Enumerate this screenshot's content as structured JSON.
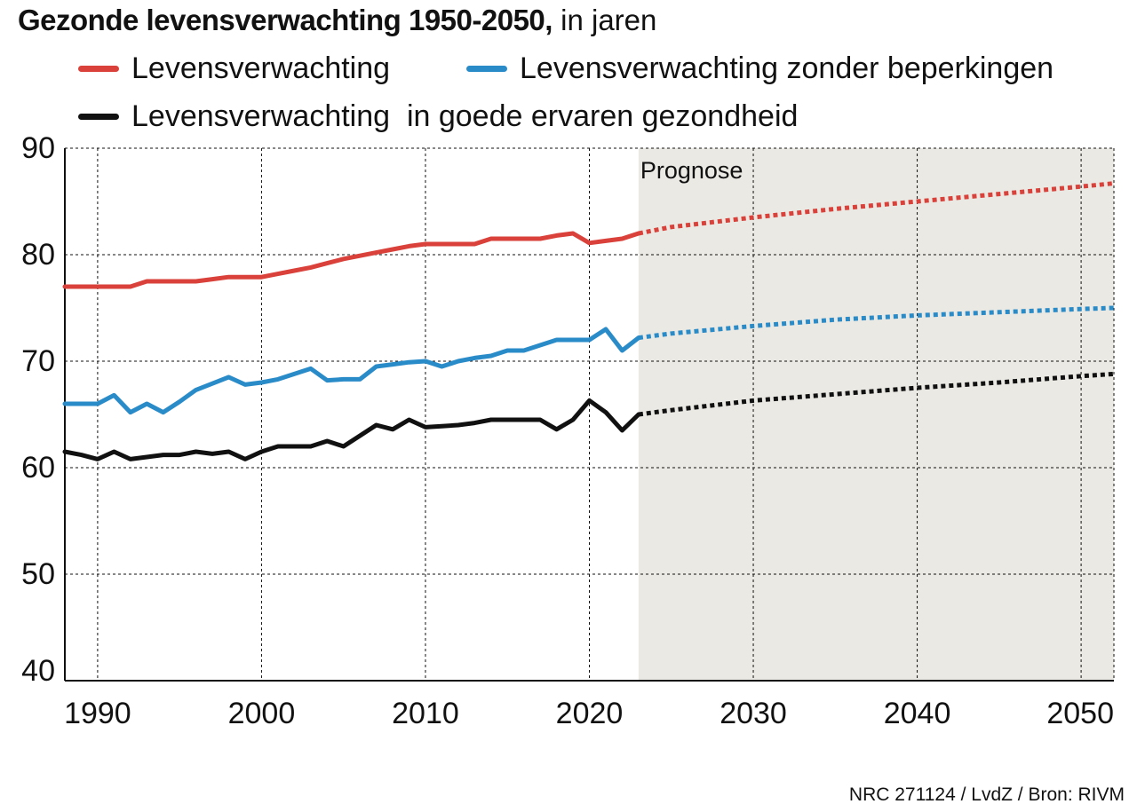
{
  "title": {
    "main": "Gezonde levensverwachting 1950-2050,",
    "sub": "in jaren"
  },
  "source_note": "NRC 271124 / LvdZ / Bron: RIVM",
  "chart_data": {
    "type": "line",
    "title": "Gezonde levensverwachting 1950-2050, in jaren",
    "xlabel": "",
    "ylabel": "",
    "xlim": [
      1988,
      2052
    ],
    "ylim": [
      40,
      90
    ],
    "x_ticks": [
      1990,
      2000,
      2010,
      2020,
      2030,
      2040,
      2050
    ],
    "y_ticks": [
      40,
      50,
      60,
      70,
      80,
      90
    ],
    "grid": true,
    "legend_position": "top",
    "forecast": {
      "label": "Prognose",
      "start": 2023,
      "end": 2052,
      "color": "#ebe9e3"
    },
    "series": [
      {
        "name": "Levensverwachting",
        "color": "#d9413a",
        "observed": [
          [
            1988,
            77.0
          ],
          [
            1989,
            77.0
          ],
          [
            1990,
            77.0
          ],
          [
            1991,
            77.0
          ],
          [
            1992,
            77.0
          ],
          [
            1993,
            77.5
          ],
          [
            1994,
            77.5
          ],
          [
            1995,
            77.5
          ],
          [
            1996,
            77.5
          ],
          [
            1997,
            77.7
          ],
          [
            1998,
            77.9
          ],
          [
            1999,
            77.9
          ],
          [
            2000,
            77.9
          ],
          [
            2001,
            78.2
          ],
          [
            2002,
            78.5
          ],
          [
            2003,
            78.8
          ],
          [
            2004,
            79.2
          ],
          [
            2005,
            79.6
          ],
          [
            2006,
            79.9
          ],
          [
            2007,
            80.2
          ],
          [
            2008,
            80.5
          ],
          [
            2009,
            80.8
          ],
          [
            2010,
            81.0
          ],
          [
            2011,
            81.0
          ],
          [
            2012,
            81.0
          ],
          [
            2013,
            81.0
          ],
          [
            2014,
            81.5
          ],
          [
            2015,
            81.5
          ],
          [
            2016,
            81.5
          ],
          [
            2017,
            81.5
          ],
          [
            2018,
            81.8
          ],
          [
            2019,
            82.0
          ],
          [
            2020,
            81.1
          ],
          [
            2021,
            81.3
          ],
          [
            2022,
            81.5
          ],
          [
            2023,
            82.0
          ]
        ],
        "forecast": [
          [
            2023,
            82.0
          ],
          [
            2025,
            82.6
          ],
          [
            2030,
            83.5
          ],
          [
            2035,
            84.3
          ],
          [
            2040,
            85.0
          ],
          [
            2045,
            85.7
          ],
          [
            2050,
            86.4
          ],
          [
            2052,
            86.7
          ]
        ]
      },
      {
        "name": "Levensverwachting zonder beperkingen",
        "color": "#2a8bc9",
        "observed": [
          [
            1988,
            66.0
          ],
          [
            1989,
            66.0
          ],
          [
            1990,
            66.0
          ],
          [
            1991,
            66.8
          ],
          [
            1992,
            65.2
          ],
          [
            1993,
            66.0
          ],
          [
            1994,
            65.2
          ],
          [
            1995,
            66.2
          ],
          [
            1996,
            67.3
          ],
          [
            1997,
            67.9
          ],
          [
            1998,
            68.5
          ],
          [
            1999,
            67.8
          ],
          [
            2000,
            68.0
          ],
          [
            2001,
            68.3
          ],
          [
            2002,
            68.8
          ],
          [
            2003,
            69.3
          ],
          [
            2004,
            68.2
          ],
          [
            2005,
            68.3
          ],
          [
            2006,
            68.3
          ],
          [
            2007,
            69.5
          ],
          [
            2008,
            69.7
          ],
          [
            2009,
            69.9
          ],
          [
            2010,
            70.0
          ],
          [
            2011,
            69.5
          ],
          [
            2012,
            70.0
          ],
          [
            2013,
            70.3
          ],
          [
            2014,
            70.5
          ],
          [
            2015,
            71.0
          ],
          [
            2016,
            71.0
          ],
          [
            2017,
            71.5
          ],
          [
            2018,
            72.0
          ],
          [
            2019,
            72.0
          ],
          [
            2020,
            72.0
          ],
          [
            2021,
            73.0
          ],
          [
            2022,
            71.0
          ],
          [
            2023,
            72.2
          ]
        ],
        "forecast": [
          [
            2023,
            72.2
          ],
          [
            2025,
            72.6
          ],
          [
            2030,
            73.3
          ],
          [
            2035,
            73.9
          ],
          [
            2040,
            74.3
          ],
          [
            2045,
            74.6
          ],
          [
            2050,
            74.9
          ],
          [
            2052,
            75.0
          ]
        ]
      },
      {
        "name": "Levensverwachting  in goede ervaren gezondheid",
        "color": "#111111",
        "observed": [
          [
            1988,
            61.5
          ],
          [
            1989,
            61.2
          ],
          [
            1990,
            60.8
          ],
          [
            1991,
            61.5
          ],
          [
            1992,
            60.8
          ],
          [
            1993,
            61.0
          ],
          [
            1994,
            61.2
          ],
          [
            1995,
            61.2
          ],
          [
            1996,
            61.5
          ],
          [
            1997,
            61.3
          ],
          [
            1998,
            61.5
          ],
          [
            1999,
            60.8
          ],
          [
            2000,
            61.5
          ],
          [
            2001,
            62.0
          ],
          [
            2002,
            62.0
          ],
          [
            2003,
            62.0
          ],
          [
            2004,
            62.5
          ],
          [
            2005,
            62.0
          ],
          [
            2006,
            63.0
          ],
          [
            2007,
            64.0
          ],
          [
            2008,
            63.6
          ],
          [
            2009,
            64.5
          ],
          [
            2010,
            63.8
          ],
          [
            2011,
            63.9
          ],
          [
            2012,
            64.0
          ],
          [
            2013,
            64.2
          ],
          [
            2014,
            64.5
          ],
          [
            2015,
            64.5
          ],
          [
            2016,
            64.5
          ],
          [
            2017,
            64.5
          ],
          [
            2018,
            63.6
          ],
          [
            2019,
            64.5
          ],
          [
            2020,
            66.3
          ],
          [
            2021,
            65.2
          ],
          [
            2022,
            63.5
          ],
          [
            2023,
            65.0
          ]
        ],
        "forecast": [
          [
            2023,
            65.0
          ],
          [
            2025,
            65.4
          ],
          [
            2030,
            66.3
          ],
          [
            2035,
            66.9
          ],
          [
            2040,
            67.5
          ],
          [
            2045,
            68.0
          ],
          [
            2050,
            68.6
          ],
          [
            2052,
            68.8
          ]
        ]
      }
    ]
  }
}
